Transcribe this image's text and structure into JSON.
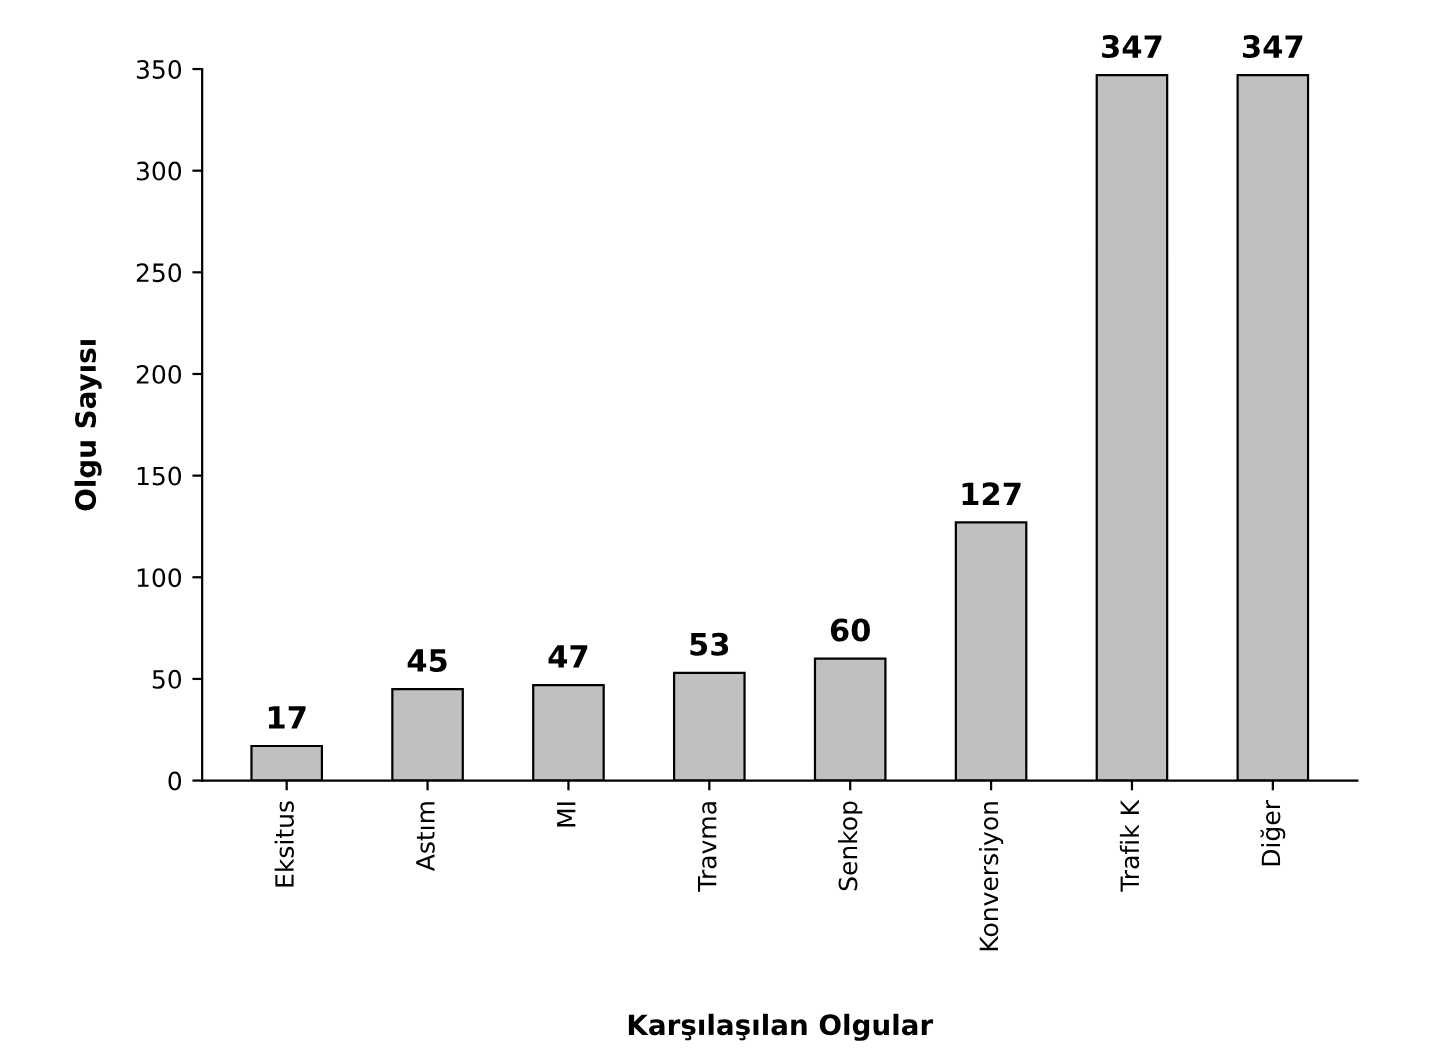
{
  "chart_data": {
    "type": "bar",
    "xlabel": "Karşılaşılan Olgular",
    "ylabel": "Olgu Sayısı",
    "categories": [
      "Eksitus",
      "Astım",
      "MI",
      "Travma",
      "Senkop",
      "Konversiyon",
      "Trafik K",
      "Diğer"
    ],
    "values": [
      17,
      45,
      47,
      53,
      60,
      127,
      347,
      347
    ],
    "color": "#c0c0c0",
    "ylim": [
      0,
      350
    ],
    "yticks": [
      0,
      50,
      100,
      150,
      200,
      250,
      300,
      350
    ],
    "grid": false,
    "data_labels": true
  }
}
